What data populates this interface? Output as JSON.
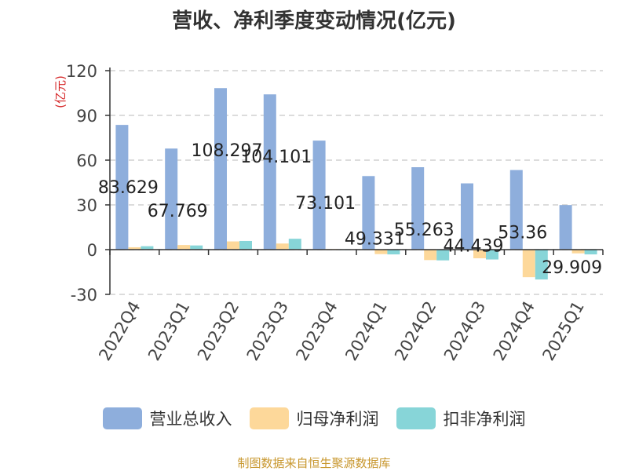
{
  "chart_data": {
    "type": "bar",
    "title": "营收、净利季度变动情况(亿元)",
    "ylabel": "(亿元)",
    "xlabel": "",
    "categories": [
      "2022Q4",
      "2023Q1",
      "2023Q2",
      "2023Q3",
      "2023Q4",
      "2024Q1",
      "2024Q2",
      "2024Q3",
      "2024Q4",
      "2025Q1"
    ],
    "yticks": [
      -30,
      0,
      30,
      60,
      90,
      120
    ],
    "ylim": [
      -30,
      120
    ],
    "grid": true,
    "legend_position": "bottom",
    "series": [
      {
        "name": "营业总收入",
        "color": "#8eaedc",
        "values": [
          83.629,
          67.769,
          108.297,
          104.101,
          73.101,
          49.331,
          55.263,
          44.439,
          53.36,
          29.909
        ],
        "labels": [
          "83.629",
          "67.769",
          "108.297",
          "104.101",
          "73.101",
          "49.331",
          "55.263",
          "44.439",
          "53.36",
          "29.909"
        ]
      },
      {
        "name": "归母净利润",
        "color": "#fdd89a",
        "values": [
          1.6,
          3.1,
          5.5,
          4.1,
          0.4,
          -3.0,
          -7.0,
          -5.8,
          -18.5,
          -2.5
        ]
      },
      {
        "name": "扣非净利润",
        "color": "#87d5d8",
        "values": [
          2.3,
          2.8,
          5.8,
          7.3,
          0.2,
          -3.2,
          -7.2,
          -6.6,
          -20.0,
          -3.2
        ]
      }
    ]
  },
  "footer": {
    "source": "制图数据来自恒生聚源数据库"
  }
}
